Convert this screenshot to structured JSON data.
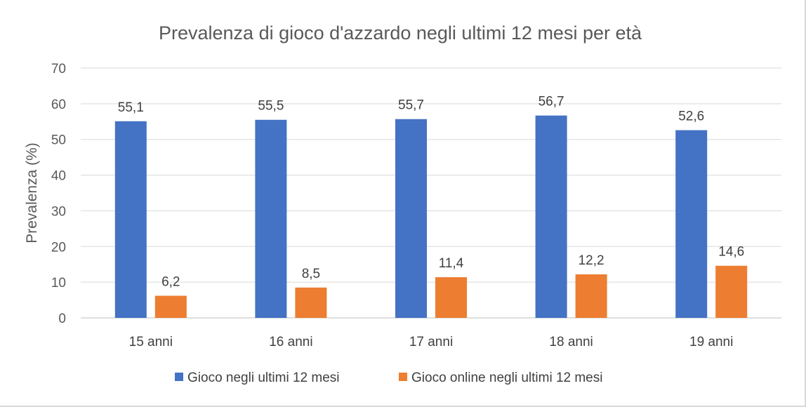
{
  "chart_data": {
    "type": "bar",
    "title": "Prevalenza di gioco d'azzardo negli ultimi 12 mesi per età",
    "xlabel": "",
    "ylabel": "Prevalenza (%)",
    "categories": [
      "15 anni",
      "16 anni",
      "17 anni",
      "18 anni",
      "19 anni"
    ],
    "series": [
      {
        "name": "Gioco negli ultimi 12 mesi",
        "values": [
          55.1,
          55.5,
          55.7,
          56.7,
          52.6
        ],
        "labels": [
          "55,1",
          "55,5",
          "55,7",
          "56,7",
          "52,6"
        ],
        "color": "#4472c4"
      },
      {
        "name": "Gioco online negli ultimi 12 mesi",
        "values": [
          6.2,
          8.5,
          11.4,
          12.2,
          14.6
        ],
        "labels": [
          "6,2",
          "8,5",
          "11,4",
          "12,2",
          "14,6"
        ],
        "color": "#ed7d31"
      }
    ],
    "ylim": [
      0,
      70
    ],
    "yticks": [
      0,
      10,
      20,
      30,
      40,
      50,
      60,
      70
    ],
    "grid": true,
    "legend_position": "bottom"
  }
}
